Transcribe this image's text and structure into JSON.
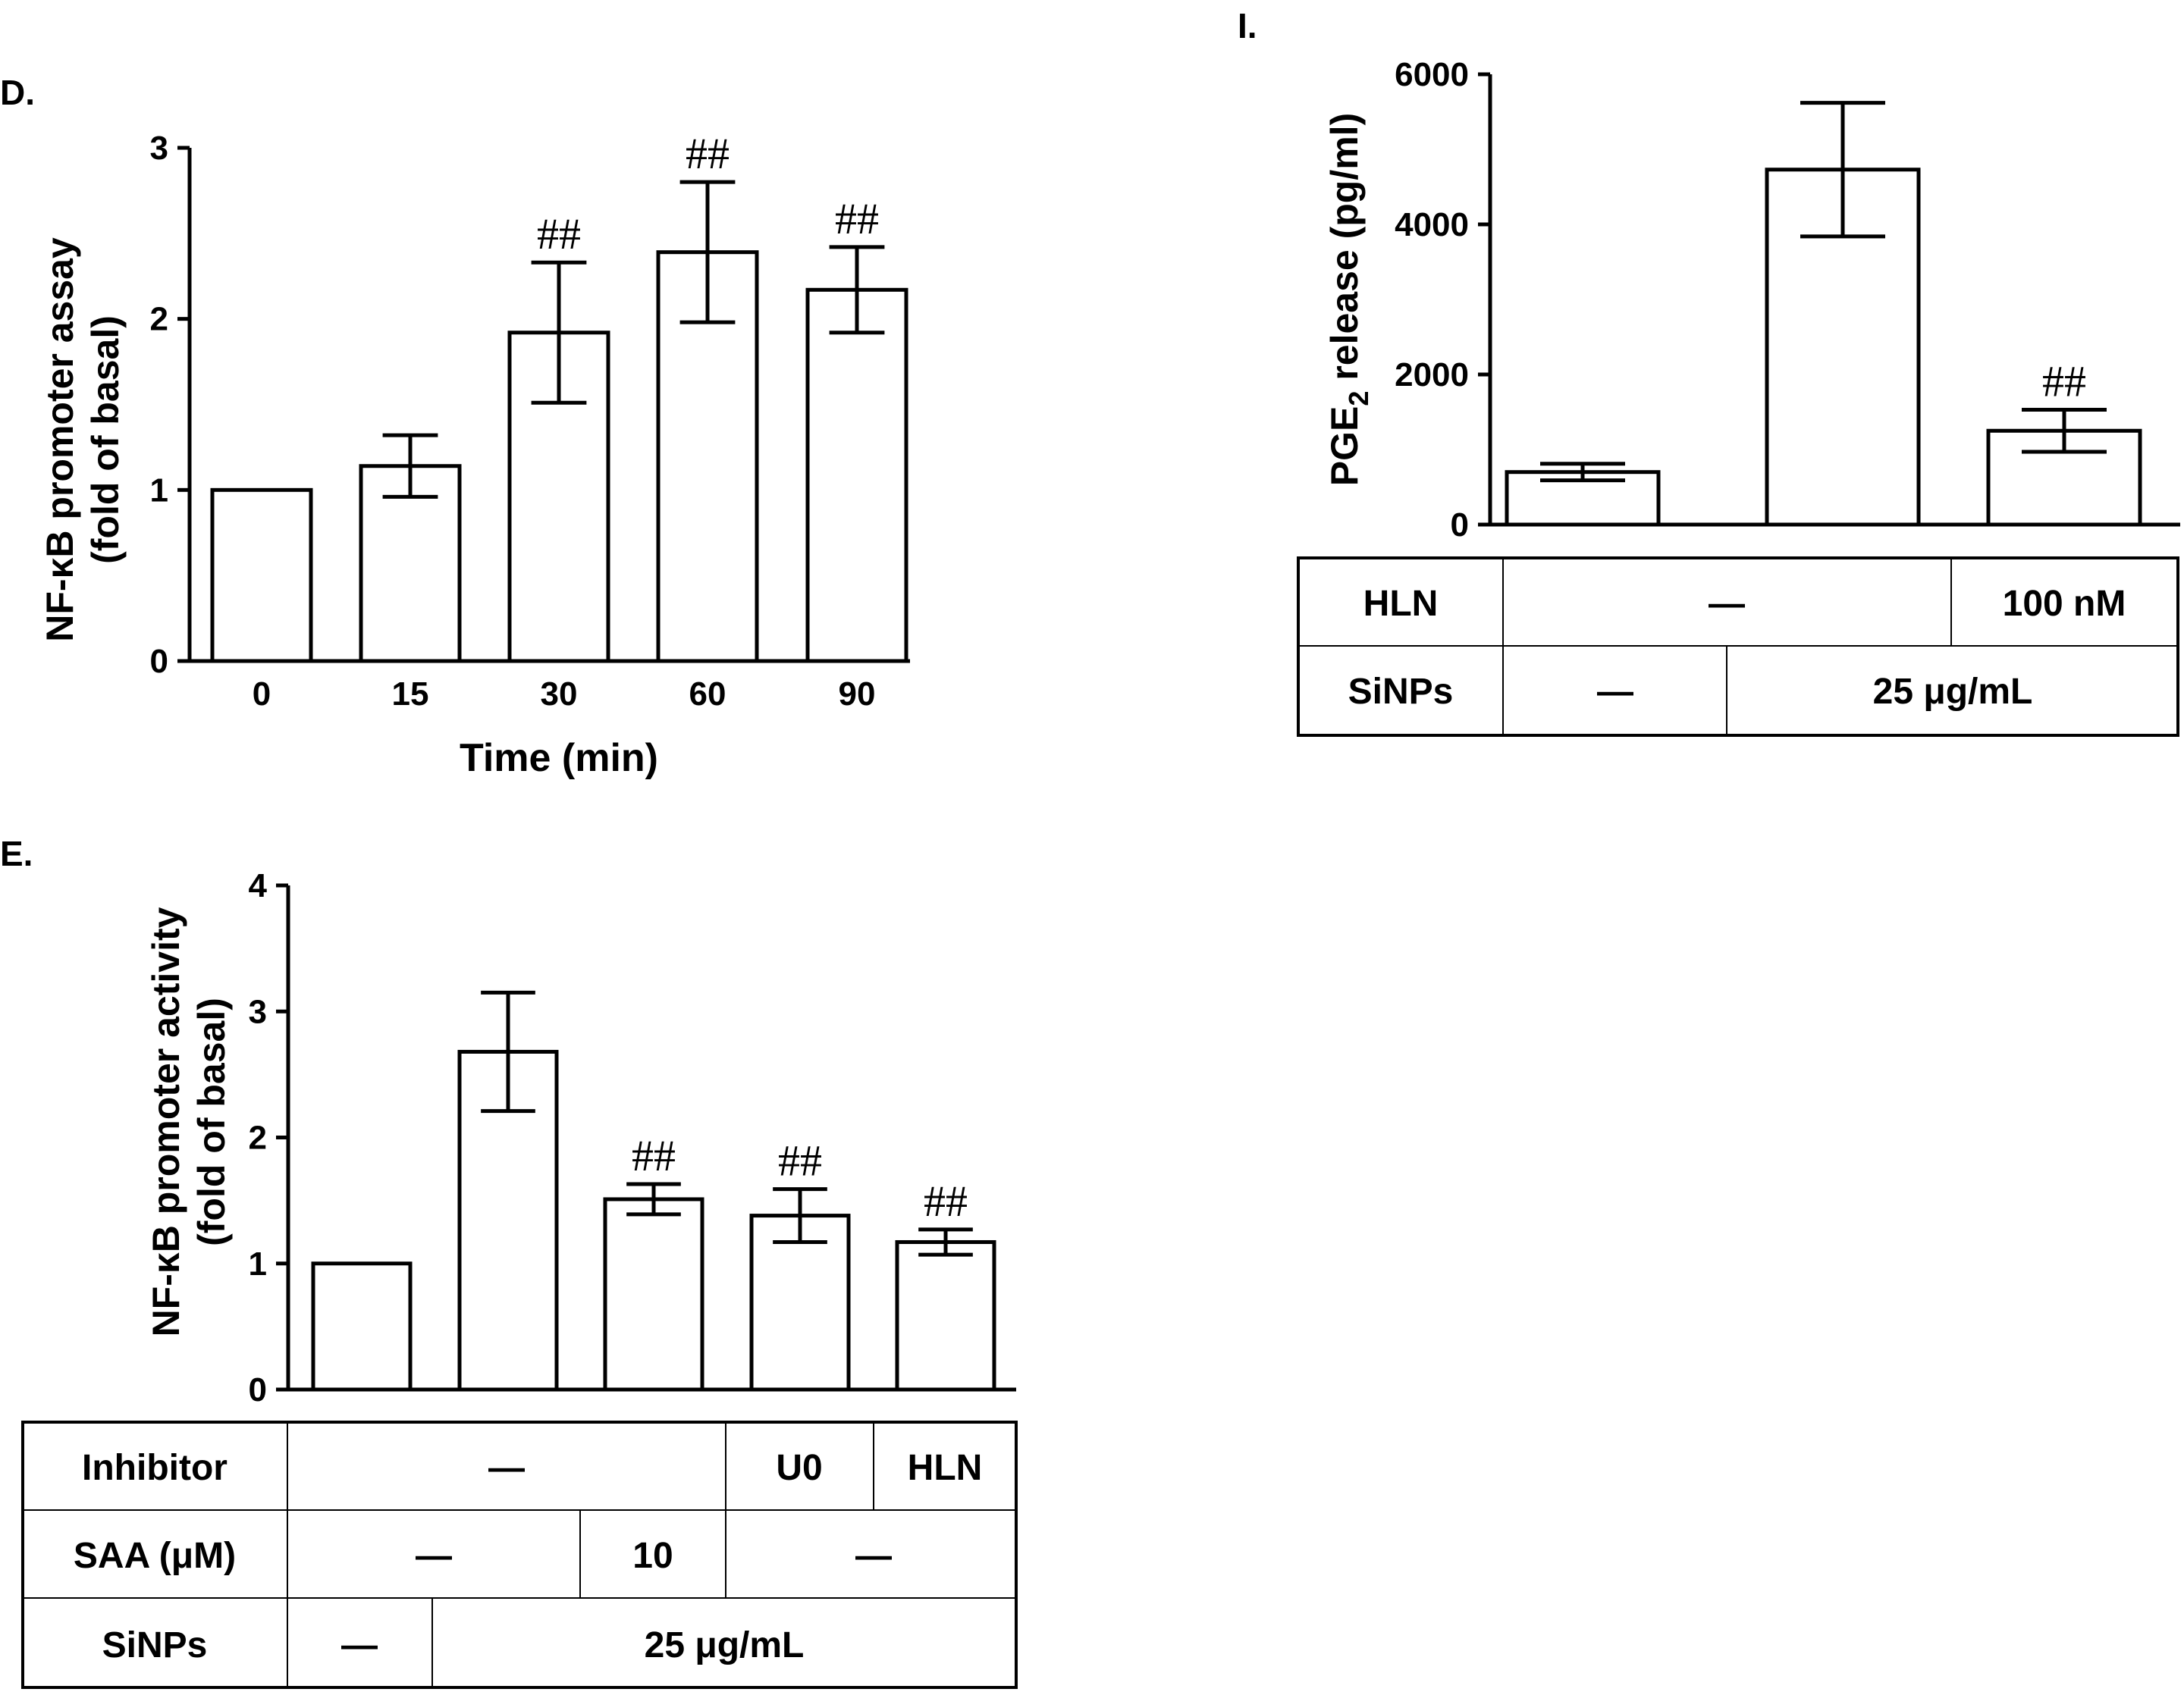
{
  "chart_data": [
    {
      "id": "D",
      "type": "bar",
      "panel_label": "D.",
      "title": "",
      "xlabel": "Time (min)",
      "ylabel_line1": "NF-κB promoter assay",
      "ylabel_line2": "(fold of basal)",
      "ylim": [
        0,
        3
      ],
      "yticks": [
        "0",
        "1",
        "2",
        "3"
      ],
      "categories": [
        "0",
        "15",
        "30",
        "60",
        "90"
      ],
      "values": [
        1.0,
        1.14,
        1.92,
        2.39,
        2.17
      ],
      "errors": [
        0,
        0.18,
        0.41,
        0.41,
        0.25
      ],
      "annotations": [
        "",
        "",
        "##",
        "##",
        "##"
      ]
    },
    {
      "id": "I",
      "type": "bar",
      "panel_label": "I.",
      "title": "",
      "xlabel": "",
      "ylabel_main": "PGE",
      "ylabel_sub": "2",
      "ylabel_rest": " release (pg/ml)",
      "ylim": [
        0,
        6000
      ],
      "yticks": [
        "0",
        "2000",
        "4000",
        "6000"
      ],
      "values": [
        700,
        4730,
        1250
      ],
      "errors": [
        110,
        890,
        280
      ],
      "annotations": [
        "",
        "",
        "##"
      ],
      "conditions": [
        {
          "label": "HLN",
          "cells": [
            "—",
            "100 nM"
          ]
        },
        {
          "label": "SiNPs",
          "cells": [
            "—",
            "25 μg/mL"
          ]
        }
      ]
    },
    {
      "id": "E",
      "type": "bar",
      "panel_label": "E.",
      "title": "",
      "xlabel": "",
      "ylabel_line1": "NF-κB promoter activity",
      "ylabel_line2": "(fold of basal)",
      "ylim": [
        0,
        4
      ],
      "yticks": [
        "0",
        "1",
        "2",
        "3",
        "4"
      ],
      "values": [
        1.0,
        2.68,
        1.51,
        1.38,
        1.17
      ],
      "errors": [
        0,
        0.47,
        0.12,
        0.21,
        0.1
      ],
      "annotations": [
        "",
        "",
        "##",
        "##",
        "##"
      ],
      "conditions": [
        {
          "label": "Inhibitor",
          "cells": [
            "—",
            "U0",
            "HLN"
          ]
        },
        {
          "label": "SAA (μM)",
          "cells": [
            "—",
            "10",
            "—"
          ]
        },
        {
          "label": "SiNPs",
          "cells": [
            "—",
            "25 μg/mL"
          ]
        }
      ]
    }
  ]
}
